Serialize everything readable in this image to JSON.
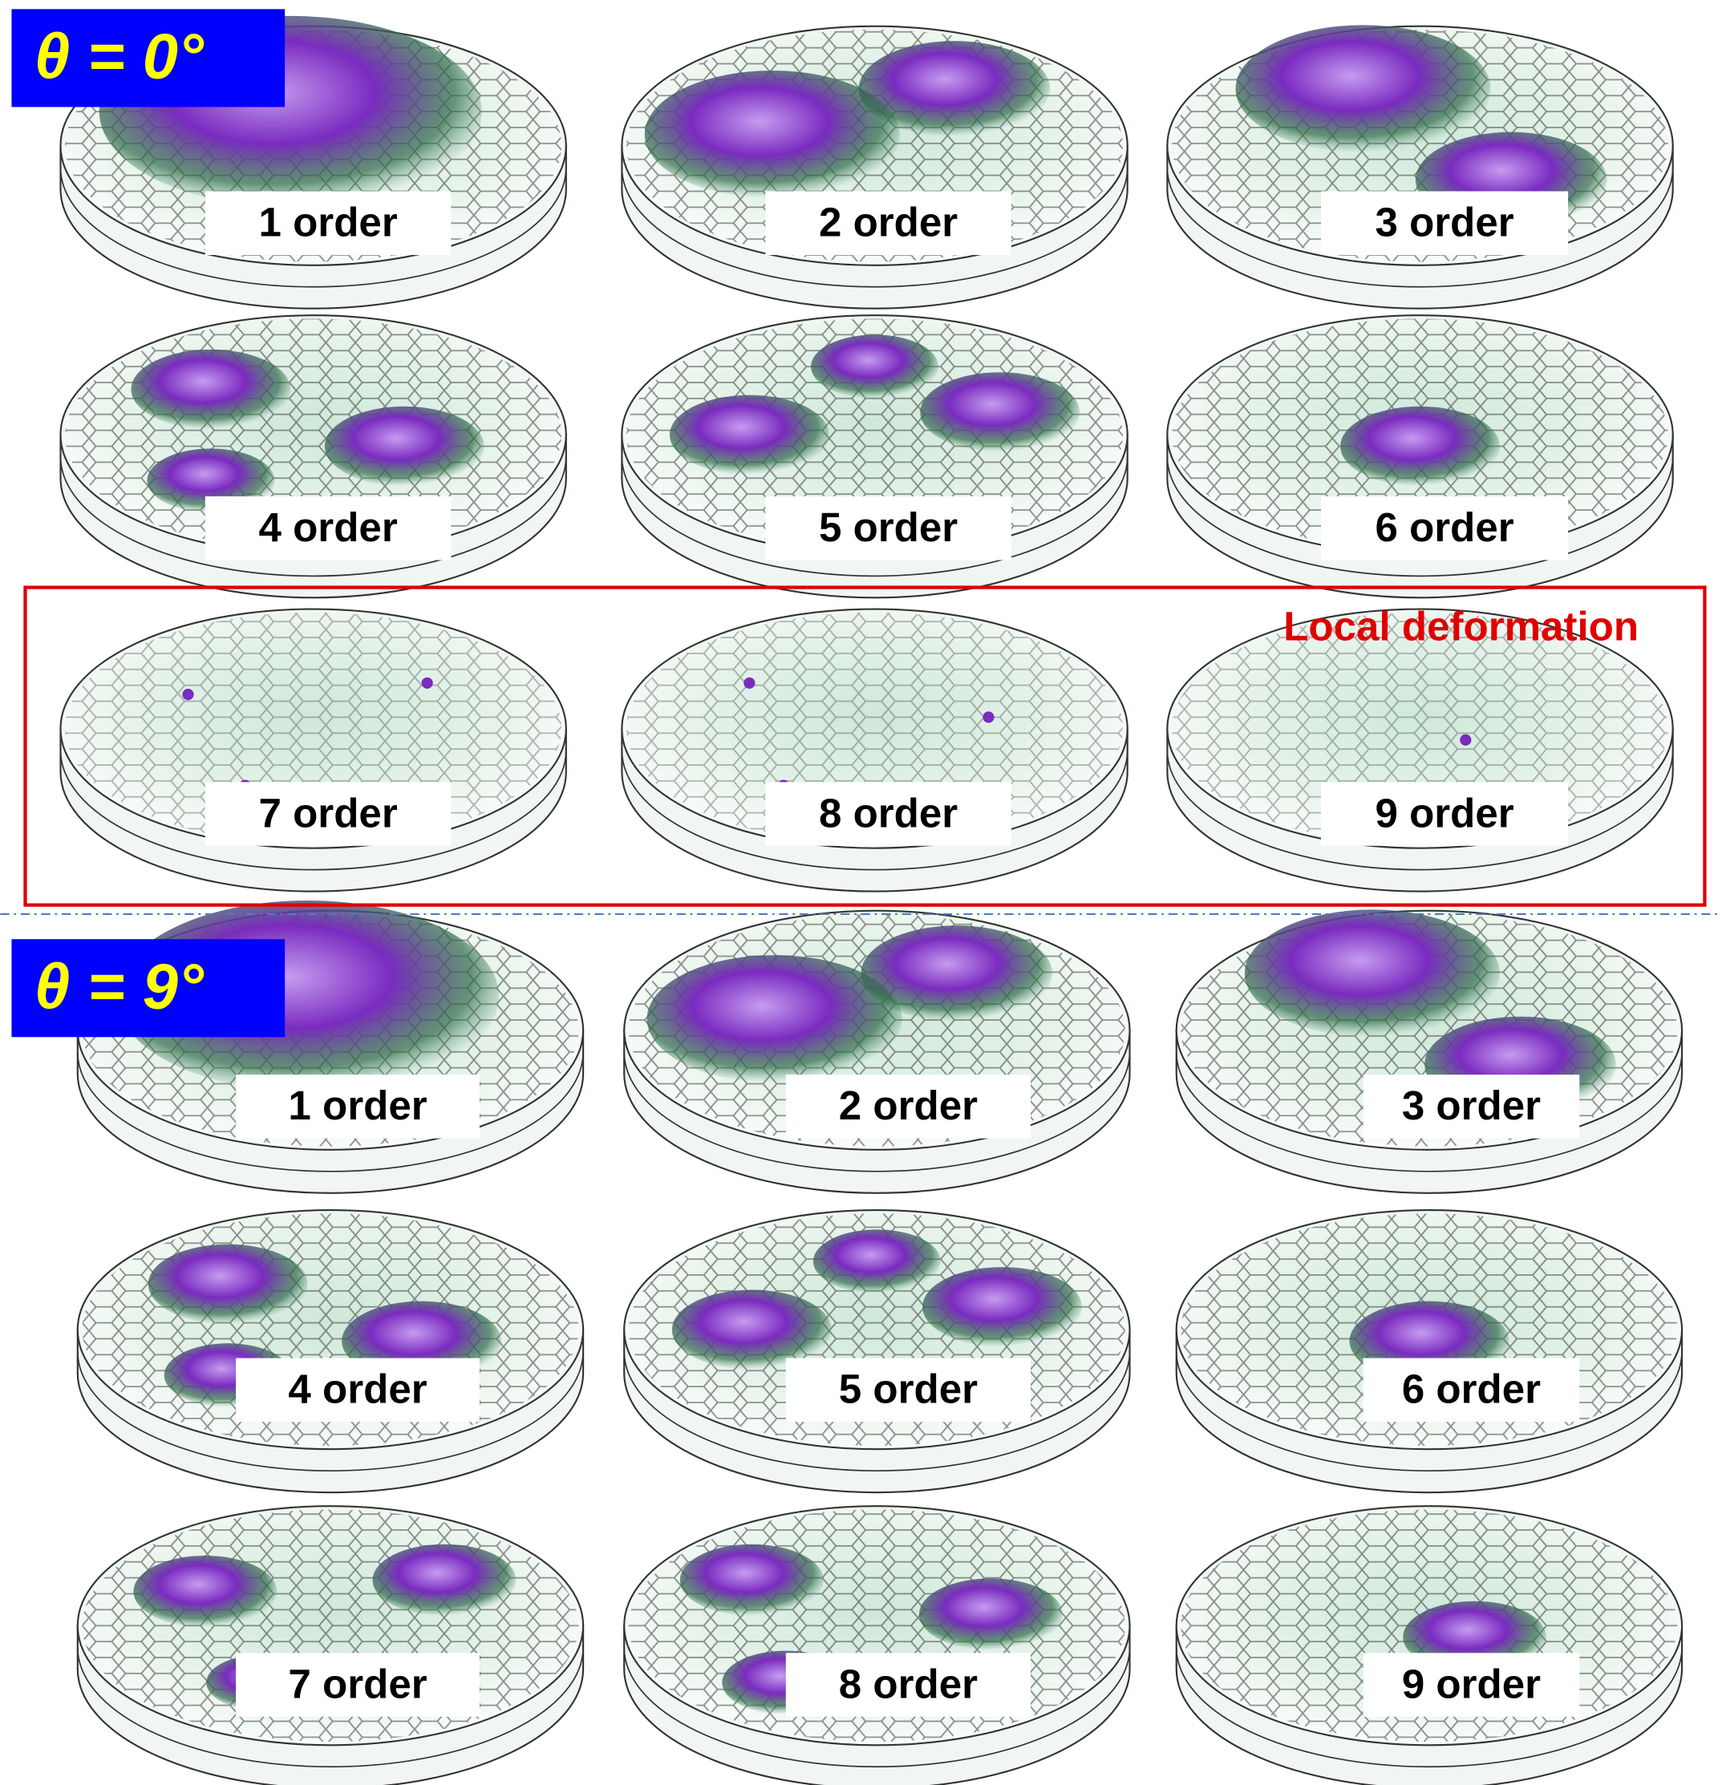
{
  "sections": [
    {
      "angle": "θ = 0°",
      "orders": [
        "1 order",
        "2 order",
        "3 order",
        "4 order",
        "5 order",
        "6 order",
        "7 order",
        "8 order",
        "9 order"
      ]
    },
    {
      "angle": "θ = 9°",
      "orders": [
        "1 order",
        "2 order",
        "3 order",
        "4 order",
        "5 order",
        "6 order",
        "7 order",
        "8 order",
        "9 order"
      ]
    }
  ],
  "highlight": "Local deformation"
}
